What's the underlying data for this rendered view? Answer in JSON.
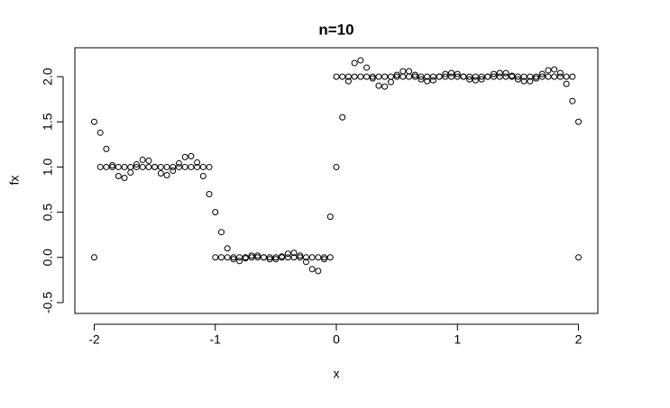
{
  "chart_data": {
    "type": "scatter",
    "title": "n=10",
    "x_label": "x",
    "y_label": "fx",
    "x": [
      -2,
      -1.95,
      -1.9,
      -1.85,
      -1.8,
      -1.75,
      -1.7,
      -1.65,
      -1.6,
      -1.55,
      -1.5,
      -1.45,
      -1.4,
      -1.35,
      -1.3,
      -1.25,
      -1.2,
      -1.15,
      -1.1,
      -1.05,
      -1,
      -0.95,
      -0.9,
      -0.85,
      -0.8,
      -0.75,
      -0.7,
      -0.65,
      -0.6,
      -0.55,
      -0.5,
      -0.45,
      -0.4,
      -0.35,
      -0.3,
      -0.25,
      -0.2,
      -0.15,
      -0.1,
      -0.05,
      0,
      0.05,
      0.1,
      0.15,
      0.2,
      0.25,
      0.3,
      0.35,
      0.4,
      0.45,
      0.5,
      0.55,
      0.6,
      0.65,
      0.7,
      0.75,
      0.8,
      0.85,
      0.9,
      0.95,
      1,
      1.05,
      1.1,
      1.15,
      1.2,
      1.25,
      1.3,
      1.35,
      1.4,
      1.45,
      1.5,
      1.55,
      1.6,
      1.65,
      1.7,
      1.75,
      1.8,
      1.85,
      1.9,
      1.95,
      2
    ],
    "series": [
      {
        "color": "#000000",
        "values": [
          0,
          1,
          1,
          1,
          1,
          1,
          1,
          1,
          1,
          1,
          1,
          1,
          1,
          1,
          1,
          1,
          1,
          1,
          1,
          1,
          0,
          0,
          0,
          0,
          0,
          0,
          0,
          0,
          0,
          0,
          0,
          0,
          0,
          0,
          0,
          0,
          0,
          0,
          0,
          0,
          2,
          2,
          2,
          2,
          2,
          2,
          2,
          2,
          2,
          2,
          2,
          2,
          2,
          2,
          2,
          2,
          2,
          2,
          2,
          2,
          2,
          2,
          2,
          2,
          2,
          2,
          2,
          2,
          2,
          2,
          2,
          2,
          2,
          2,
          2,
          2,
          2,
          2,
          2,
          2,
          0
        ]
      },
      {
        "color": "#000000",
        "values": [
          1.5,
          1.38,
          1.2,
          1.02,
          0.9,
          0.88,
          0.94,
          1.03,
          1.08,
          1.07,
          1,
          0.93,
          0.91,
          0.96,
          1.04,
          1.11,
          1.12,
          1.05,
          0.9,
          0.7,
          0.5,
          0.28,
          0.1,
          -0.02,
          -0.04,
          -0.01,
          0.02,
          0.02,
          0,
          -0.02,
          -0.02,
          0.01,
          0.04,
          0.05,
          0.02,
          -0.05,
          -0.13,
          -0.15,
          -0.02,
          0.45,
          1,
          1.55,
          1.95,
          2.15,
          2.18,
          2.1,
          1.98,
          1.9,
          1.89,
          1.94,
          2.02,
          2.06,
          2.06,
          2.02,
          1.97,
          1.95,
          1.96,
          2,
          2.03,
          2.04,
          2.03,
          2,
          1.97,
          1.96,
          1.97,
          2,
          2.03,
          2.04,
          2.04,
          2.01,
          1.97,
          1.95,
          1.95,
          1.98,
          2.03,
          2.07,
          2.08,
          2.04,
          1.92,
          1.73,
          1.5
        ]
      }
    ],
    "xlim": [
      -2.16,
      2.16
    ],
    "ylim": [
      -0.62,
      2.32
    ],
    "xticks": [
      -2,
      -1,
      0,
      1,
      2
    ],
    "yticks": [
      {
        "value": -0.5,
        "label": "-0.5"
      },
      {
        "value": 0,
        "label": "0.0"
      },
      {
        "value": 0.5,
        "label": "0.5"
      },
      {
        "value": 1,
        "label": "1.0"
      },
      {
        "value": 1.5,
        "label": "1.5"
      },
      {
        "value": 2,
        "label": "2.0"
      }
    ]
  }
}
